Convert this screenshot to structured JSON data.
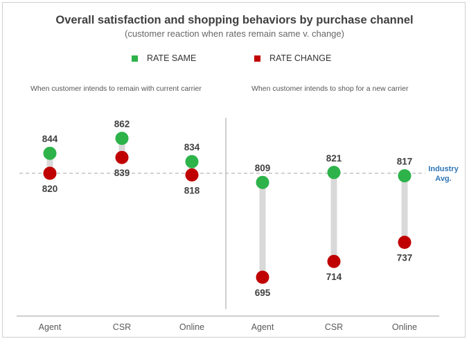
{
  "chart_data": {
    "type": "dumbbell",
    "title": "Overall satisfaction and shopping behaviors by purchase channel",
    "subtitle": "(customer reaction when rates remain same v. change)",
    "legend": {
      "placement": "top",
      "entries": [
        {
          "name": "RATE SAME",
          "color": "#2db34a"
        },
        {
          "name": "RATE CHANGE",
          "color": "#c00000"
        }
      ]
    },
    "series_colors": {
      "same": "#2db34a",
      "change": "#c00000",
      "connector": "#d9d9d9"
    },
    "industry_avg": {
      "label_line1": "Industry",
      "label_line2": "Avg.",
      "value": 820,
      "color": "#2e75b6"
    },
    "ylim": [
      680,
      875
    ],
    "groups": [
      {
        "label": "When customer intends to remain with current carrier",
        "categories": [
          "Agent",
          "CSR",
          "Online"
        ],
        "rate_same": [
          844,
          862,
          834
        ],
        "rate_change": [
          820,
          839,
          818
        ]
      },
      {
        "label": "When customer intends to shop for a new carrier",
        "categories": [
          "Agent",
          "CSR",
          "Online"
        ],
        "rate_same": [
          809,
          821,
          817
        ],
        "rate_change": [
          695,
          714,
          737
        ]
      }
    ]
  }
}
